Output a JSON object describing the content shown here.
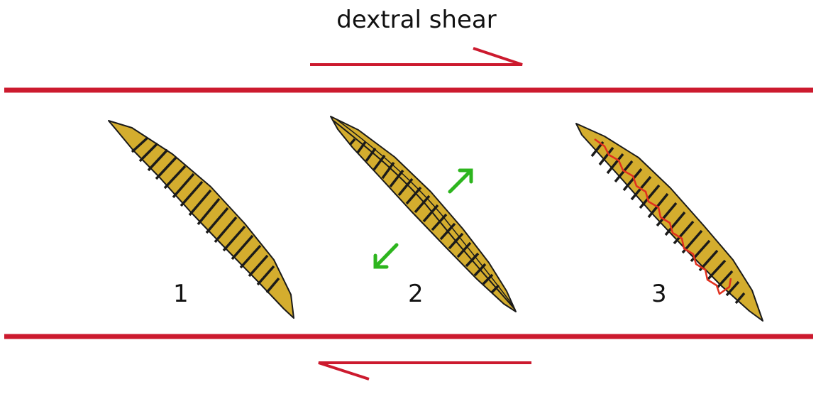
{
  "title": "dextral shear",
  "stages": [
    {
      "label": "1"
    },
    {
      "label": "2"
    },
    {
      "label": "3"
    }
  ],
  "colors": {
    "shear_boundary": "#cc1a2e",
    "vein_fill": "#d4ad2e",
    "vein_outline": "#1a1a1a",
    "extension_arrow": "#2db51e",
    "fracture": "#e0301e",
    "background": "#ffffff"
  }
}
